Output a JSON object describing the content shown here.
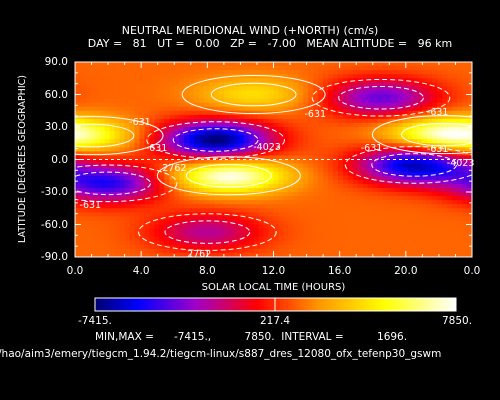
{
  "chart_data": {
    "type": "heatmap",
    "title": "NEUTRAL MERIDIONAL WIND (+NORTH) (cm/s)",
    "subtitle": "DAY =   81   UT =   0.00   ZP =   -7.00   MEAN ALTITUDE =   96 km",
    "xlabel": "SOLAR LOCAL TIME (HOURS)",
    "ylabel": "LATITUDE (DEGREES GEOGRAPHIC)",
    "xlim": [
      0,
      24
    ],
    "ylim": [
      -90,
      90
    ],
    "x_ticks": [
      "0.0",
      "4.0",
      "8.0",
      "12.0",
      "16.0",
      "20.0",
      "0.0"
    ],
    "y_ticks": [
      "90.0",
      "60.0",
      "30.0",
      "0.0",
      "-30.0",
      "-60.0",
      "-90.0"
    ],
    "colorbar": {
      "min_label": "-7415.",
      "mid_label": "217.4",
      "max_label": "7850."
    },
    "contour_labels": [
      "-631",
      "-631",
      "-631",
      "-4023",
      "-631",
      "2762",
      "-631",
      "-4023",
      "2762",
      "-631",
      "-631"
    ],
    "min": -7415,
    "max": 7850,
    "interval": 1696,
    "features": [
      {
        "type": "max",
        "x": 9.3,
        "y": -15,
        "value": 7850
      },
      {
        "type": "max",
        "x": 10.8,
        "y": 60,
        "value": 4000
      },
      {
        "type": "max",
        "x": 22.3,
        "y": 23,
        "value": 7000
      },
      {
        "type": "max",
        "x": 1.0,
        "y": 22,
        "value": 3500
      },
      {
        "type": "min",
        "x": 8.5,
        "y": 18,
        "value": -7415
      },
      {
        "type": "min",
        "x": 20.5,
        "y": -5,
        "value": -6500
      },
      {
        "type": "min",
        "x": 2.0,
        "y": -22,
        "value": -5000
      },
      {
        "type": "min",
        "x": 18.5,
        "y": 57,
        "value": -4000
      },
      {
        "type": "min",
        "x": 8.0,
        "y": -67,
        "value": -2500
      }
    ]
  },
  "footer": {
    "stats_line": "MIN,MAX =      -7415.,          7850.  INTERVAL =          1696.",
    "path": "/hao/aim3/emery/tiegcm_1.94.2/tiegcm-linux/s887_dres_12080_ofx_tefenp30_gswm"
  },
  "colors": {
    "min": "#0000b4",
    "mid": "#ff0000",
    "max": "#ffffff",
    "background": "#000000"
  }
}
